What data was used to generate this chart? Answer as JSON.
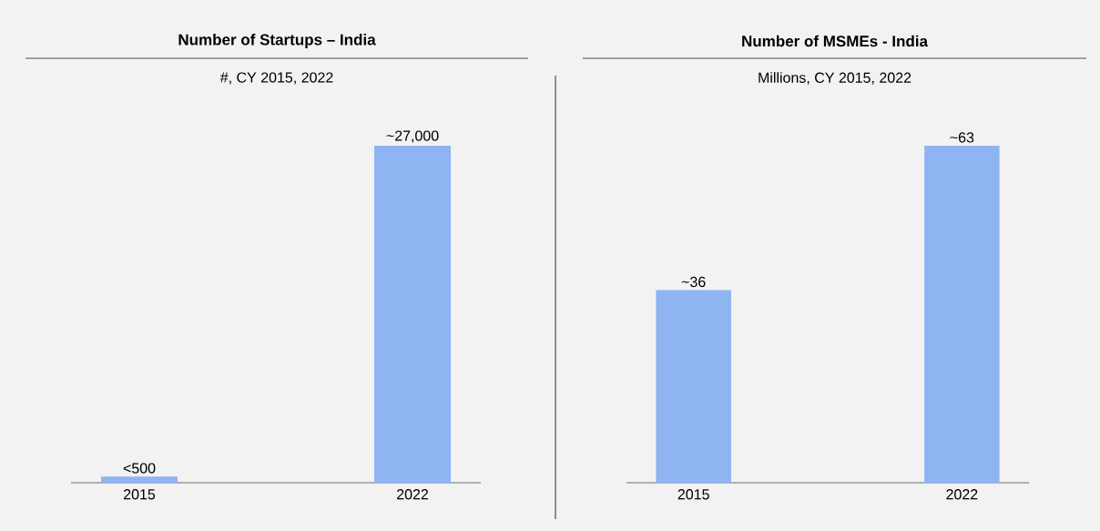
{
  "chart_data": [
    {
      "type": "bar",
      "title": "Number of Startups – India",
      "subtitle": "#,  CY 2015, 2022",
      "categories": [
        "2015",
        "2022"
      ],
      "values": [
        500,
        27000
      ],
      "value_labels": [
        "<500",
        "~27,000"
      ],
      "color": "#8fb4f2"
    },
    {
      "type": "bar",
      "title": "Number of MSMEs - India",
      "subtitle": "Millions,  CY 2015,  2022",
      "categories": [
        "2015",
        "2022"
      ],
      "values": [
        36,
        63
      ],
      "value_labels": [
        "~36",
        "~63"
      ],
      "color": "#8fb4f2"
    }
  ]
}
